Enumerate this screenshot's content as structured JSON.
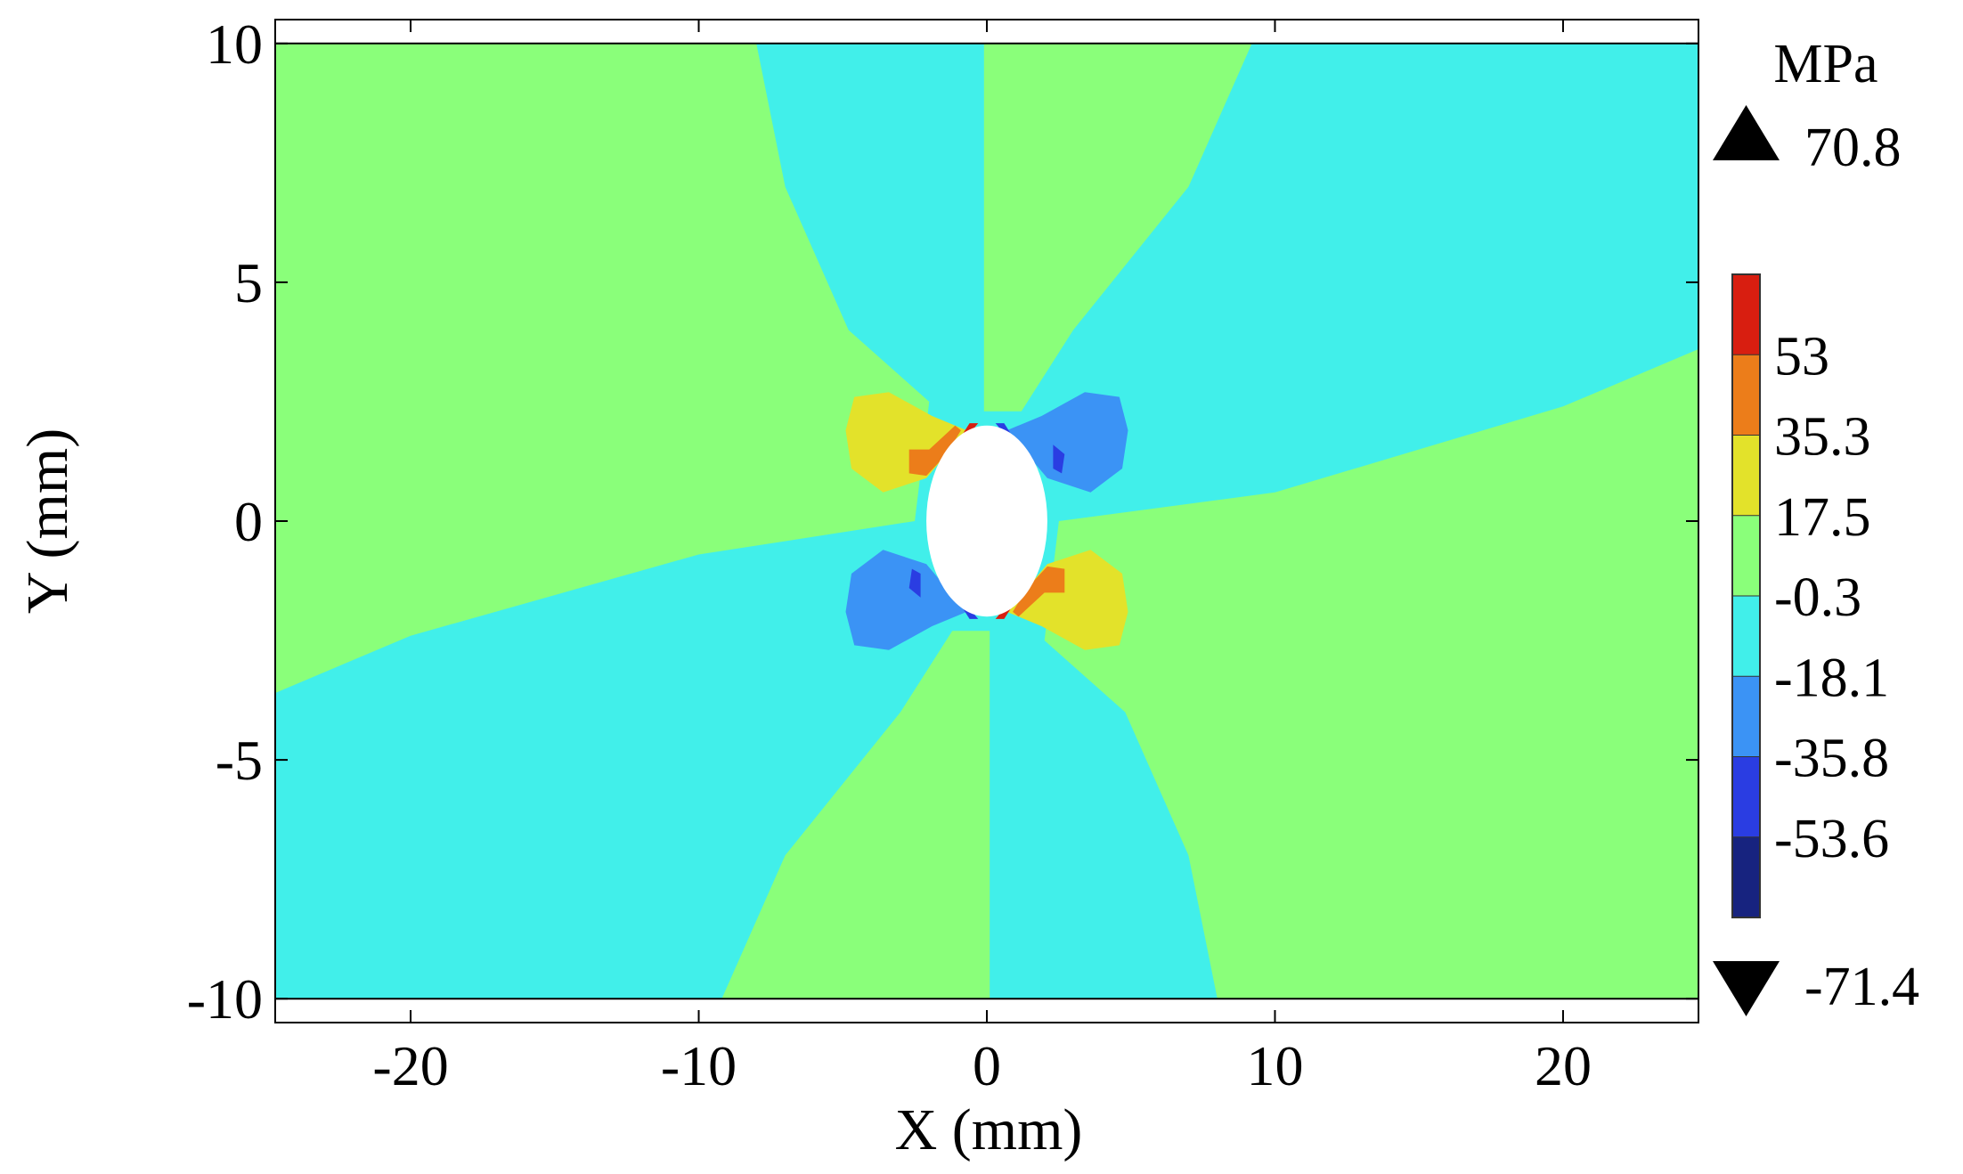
{
  "chart_data": {
    "type": "heatmap",
    "subtype": "filled-contour",
    "title": "",
    "xlabel": "X (mm)",
    "ylabel": "Y (mm)",
    "xlim": [
      -24.7,
      24.7
    ],
    "ylim": [
      -10.5,
      10.5
    ],
    "x_ticks": [
      -20,
      -10,
      0,
      10,
      20
    ],
    "y_ticks": [
      -10,
      -5,
      0,
      5,
      10
    ],
    "x_tick_labels": [
      "-20",
      "-10",
      "0",
      "10",
      "20"
    ],
    "y_tick_labels": [
      "-10",
      "-5",
      "0",
      "5",
      "10"
    ],
    "grid": false,
    "plate_extent": {
      "x": [
        -24.7,
        24.7
      ],
      "y": [
        -10,
        10
      ]
    },
    "hole": {
      "center": [
        0,
        0
      ],
      "semi_axis_x": 2.1,
      "semi_axis_y": 2.0
    },
    "colorbar": {
      "unit": "MPa",
      "max_label": "70.8",
      "min_label": "-71.4",
      "tick_labels": [
        "53",
        "35.3",
        "17.5",
        "-0.3",
        "-18.1",
        "-35.8",
        "-53.6"
      ],
      "placement": "right",
      "bins": [
        {
          "range": [
            53,
            70.8
          ],
          "color": "#d81e10"
        },
        {
          "range": [
            35.3,
            53
          ],
          "color": "#ec7d1a"
        },
        {
          "range": [
            17.5,
            35.3
          ],
          "color": "#e3e22a"
        },
        {
          "range": [
            -0.3,
            17.5
          ],
          "color": "#8aff7a"
        },
        {
          "range": [
            -18.1,
            -0.3
          ],
          "color": "#41efea"
        },
        {
          "range": [
            -35.8,
            -18.1
          ],
          "color": "#3b93f5"
        },
        {
          "range": [
            -53.6,
            -35.8
          ],
          "color": "#2a3de2"
        },
        {
          "range": [
            -71.4,
            -53.6
          ],
          "color": "#17237f"
        }
      ]
    },
    "regions": [
      {
        "name": "green-upper-left",
        "color": "#8aff7a",
        "points": [
          [
            -24.7,
            10
          ],
          [
            -8,
            10
          ],
          [
            -7,
            7
          ],
          [
            -4.8,
            4
          ],
          [
            -2,
            2.5
          ],
          [
            -2.5,
            0
          ],
          [
            -10,
            -0.7
          ],
          [
            -20,
            -2.4
          ],
          [
            -24.7,
            -3.6
          ]
        ]
      },
      {
        "name": "green-lower-right",
        "color": "#8aff7a",
        "points": [
          [
            24.7,
            -10
          ],
          [
            8,
            -10
          ],
          [
            7,
            -7
          ],
          [
            4.8,
            -4
          ],
          [
            2,
            -2.5
          ],
          [
            2.5,
            0
          ],
          [
            10,
            0.6
          ],
          [
            20,
            2.4
          ],
          [
            24.7,
            3.6
          ]
        ]
      },
      {
        "name": "green-upper-center",
        "color": "#8aff7a",
        "points": [
          [
            -0.1,
            10
          ],
          [
            9.2,
            10
          ],
          [
            7,
            7
          ],
          [
            3,
            4
          ],
          [
            1.2,
            2.3
          ],
          [
            -0.1,
            2.3
          ]
        ]
      },
      {
        "name": "green-lower-center",
        "color": "#8aff7a",
        "points": [
          [
            0.1,
            -10
          ],
          [
            -9.2,
            -10
          ],
          [
            -7,
            -7
          ],
          [
            -3,
            -4
          ],
          [
            -1.2,
            -2.3
          ],
          [
            0.1,
            -2.3
          ]
        ]
      },
      {
        "name": "yellow-lobe-upper-left",
        "color": "#e3e22a",
        "points": [
          [
            -4.9,
            1.9
          ],
          [
            -4.6,
            2.6
          ],
          [
            -3.4,
            2.7
          ],
          [
            -1.9,
            2.2
          ],
          [
            -0.7,
            1.9
          ],
          [
            -2.1,
            0.9
          ],
          [
            -3.6,
            0.6
          ],
          [
            -4.7,
            1.1
          ]
        ]
      },
      {
        "name": "yellow-lobe-lower-right",
        "color": "#e3e22a",
        "points": [
          [
            4.9,
            -1.9
          ],
          [
            4.6,
            -2.6
          ],
          [
            3.4,
            -2.7
          ],
          [
            1.9,
            -2.2
          ],
          [
            0.7,
            -1.9
          ],
          [
            2.1,
            -0.9
          ],
          [
            3.6,
            -0.6
          ],
          [
            4.7,
            -1.1
          ]
        ]
      },
      {
        "name": "blue-lobe-upper-right",
        "color": "#3b93f5",
        "points": [
          [
            4.9,
            1.9
          ],
          [
            4.6,
            2.6
          ],
          [
            3.4,
            2.7
          ],
          [
            1.9,
            2.2
          ],
          [
            0.7,
            1.9
          ],
          [
            2.1,
            0.9
          ],
          [
            3.6,
            0.6
          ],
          [
            4.7,
            1.1
          ]
        ]
      },
      {
        "name": "blue-lobe-lower-left",
        "color": "#3b93f5",
        "points": [
          [
            -4.9,
            -1.9
          ],
          [
            -4.6,
            -2.6
          ],
          [
            -3.4,
            -2.7
          ],
          [
            -1.9,
            -2.2
          ],
          [
            -0.7,
            -1.9
          ],
          [
            -2.1,
            -0.9
          ],
          [
            -3.6,
            -0.6
          ],
          [
            -4.7,
            -1.1
          ]
        ]
      },
      {
        "name": "orange-spot-upper-left",
        "color": "#ec7d1a",
        "points": [
          [
            -2.7,
            1.5
          ],
          [
            -2.7,
            1.0
          ],
          [
            -2.1,
            0.95
          ],
          [
            -1.4,
            1.4
          ],
          [
            -0.9,
            1.9
          ],
          [
            -1.1,
            2.0
          ],
          [
            -2.0,
            1.5
          ]
        ]
      },
      {
        "name": "orange-spot-lower-right",
        "color": "#ec7d1a",
        "points": [
          [
            2.7,
            -1.5
          ],
          [
            2.7,
            -1.0
          ],
          [
            2.1,
            -0.95
          ],
          [
            1.4,
            -1.4
          ],
          [
            0.9,
            -1.9
          ],
          [
            1.1,
            -2.0
          ],
          [
            2.0,
            -1.5
          ]
        ]
      },
      {
        "name": "darkblue-spot-upper-right",
        "color": "#2a3de2",
        "points": [
          [
            2.3,
            1.6
          ],
          [
            2.7,
            1.4
          ],
          [
            2.6,
            1.0
          ],
          [
            2.3,
            1.1
          ]
        ]
      },
      {
        "name": "darkblue-spot-lower-left",
        "color": "#2a3de2",
        "points": [
          [
            -2.3,
            -1.6
          ],
          [
            -2.7,
            -1.4
          ],
          [
            -2.6,
            -1.0
          ],
          [
            -2.3,
            -1.1
          ]
        ]
      },
      {
        "name": "red-rim-upper-left",
        "color": "#d81e10",
        "points": [
          [
            -1.5,
            1.2
          ],
          [
            -0.6,
            2.05
          ],
          [
            -0.3,
            2.05
          ],
          [
            -1.0,
            1.55
          ]
        ]
      },
      {
        "name": "red-rim-lower-right",
        "color": "#d81e10",
        "points": [
          [
            1.5,
            -1.2
          ],
          [
            0.6,
            -2.05
          ],
          [
            0.3,
            -2.05
          ],
          [
            1.0,
            -1.55
          ]
        ]
      },
      {
        "name": "darkblue-rim-upper-right",
        "color": "#2a3de2",
        "points": [
          [
            1.5,
            1.2
          ],
          [
            0.6,
            2.05
          ],
          [
            0.3,
            2.05
          ],
          [
            1.0,
            1.55
          ]
        ]
      },
      {
        "name": "darkblue-rim-lower-left",
        "color": "#2a3de2",
        "points": [
          [
            -1.5,
            -1.2
          ],
          [
            -0.6,
            -2.05
          ],
          [
            -0.3,
            -2.05
          ],
          [
            -1.0,
            -1.55
          ]
        ]
      }
    ],
    "background_color": "#41efea"
  }
}
